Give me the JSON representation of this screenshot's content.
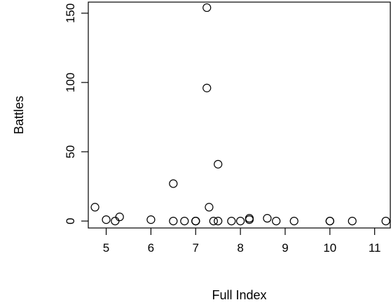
{
  "chart_data": {
    "type": "scatter",
    "title": "",
    "xlabel": "Full Index",
    "ylabel": "Battles",
    "xlim": [
      4.6,
      11.35
    ],
    "ylim": [
      -5,
      158
    ],
    "xticks": [
      5,
      6,
      7,
      8,
      9,
      10,
      11
    ],
    "yticks": [
      0,
      50,
      100,
      150
    ],
    "grid": false,
    "legend": "none",
    "marker": "open-circle",
    "points": [
      {
        "x": 4.75,
        "y": 10
      },
      {
        "x": 5.0,
        "y": 1
      },
      {
        "x": 5.2,
        "y": 0
      },
      {
        "x": 5.3,
        "y": 3
      },
      {
        "x": 6.0,
        "y": 1
      },
      {
        "x": 6.5,
        "y": 0
      },
      {
        "x": 6.5,
        "y": 27
      },
      {
        "x": 6.75,
        "y": 0
      },
      {
        "x": 7.0,
        "y": 0
      },
      {
        "x": 7.0,
        "y": 0
      },
      {
        "x": 7.0,
        "y": 0
      },
      {
        "x": 7.25,
        "y": 154
      },
      {
        "x": 7.25,
        "y": 96
      },
      {
        "x": 7.3,
        "y": 10
      },
      {
        "x": 7.4,
        "y": 0
      },
      {
        "x": 7.5,
        "y": 0
      },
      {
        "x": 7.5,
        "y": 41
      },
      {
        "x": 7.8,
        "y": 0
      },
      {
        "x": 8.0,
        "y": 0
      },
      {
        "x": 8.2,
        "y": 1
      },
      {
        "x": 8.2,
        "y": 2
      },
      {
        "x": 8.6,
        "y": 2
      },
      {
        "x": 8.8,
        "y": 0
      },
      {
        "x": 9.2,
        "y": 0
      },
      {
        "x": 10.0,
        "y": 0
      },
      {
        "x": 10.0,
        "y": 0
      },
      {
        "x": 10.5,
        "y": 0
      },
      {
        "x": 11.25,
        "y": 0
      }
    ]
  }
}
